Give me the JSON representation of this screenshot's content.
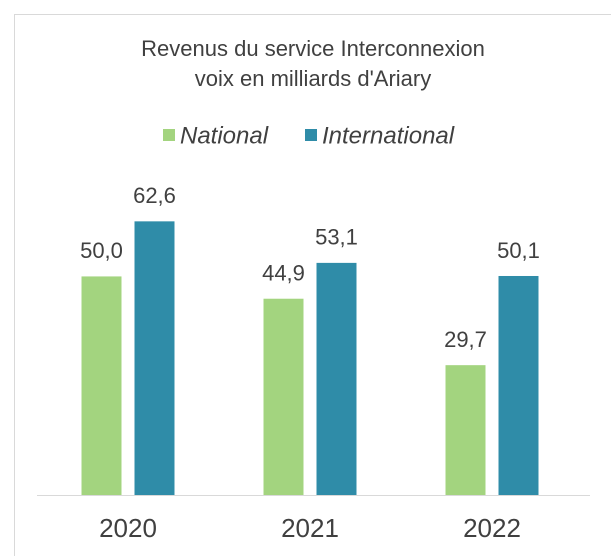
{
  "chart_data": {
    "type": "bar",
    "title": [
      "Revenus du service Interconnexion",
      "voix en milliards d'Ariary"
    ],
    "categories": [
      "2020",
      "2021",
      "2022"
    ],
    "series": [
      {
        "name": "National",
        "color": "#a3d47f",
        "values": [
          50.0,
          44.9,
          29.7
        ],
        "value_labels": [
          "50,0",
          "44,9",
          "29,7"
        ]
      },
      {
        "name": "International",
        "color": "#2f8ca8",
        "values": [
          62.6,
          53.1,
          50.1
        ],
        "value_labels": [
          "62,6",
          "53,1",
          "50,1"
        ]
      }
    ],
    "ylim": [
      0,
      70
    ],
    "legend": "top"
  }
}
